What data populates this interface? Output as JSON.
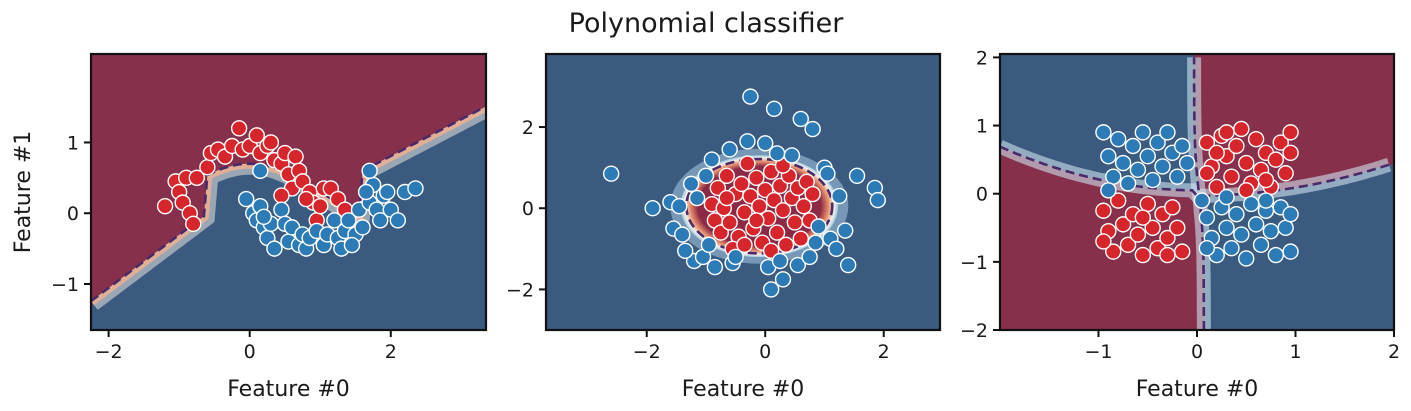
{
  "colors": {
    "class0_region": "#3a5a7f",
    "class1_region": "#86304b",
    "class0_point": "#2c7bb6",
    "class1_point": "#d7262b",
    "boundary": "#4a2a6a"
  },
  "chart_data": [
    {
      "type": "scatter",
      "title": "Polynomial classifier",
      "xlabel": "Feature #0",
      "ylabel": "Feature #1",
      "xlim": [
        -2.25,
        3.35
      ],
      "ylim": [
        -1.65,
        2.25
      ],
      "xticks": [
        -2,
        0,
        2
      ],
      "yticks": [
        -1,
        0,
        1
      ],
      "region_above_boundary": "class1",
      "series": [
        {
          "class": "class1",
          "points": [
            [
              -1.2,
              0.1
            ],
            [
              -1.05,
              0.45
            ],
            [
              -1.0,
              0.3
            ],
            [
              -0.9,
              0.5
            ],
            [
              -0.95,
              0.15
            ],
            [
              -0.85,
              0.0
            ],
            [
              -0.8,
              -0.15
            ],
            [
              -0.75,
              0.5
            ],
            [
              -0.6,
              0.65
            ],
            [
              -0.55,
              0.85
            ],
            [
              -0.45,
              0.9
            ],
            [
              -0.35,
              0.8
            ],
            [
              -0.25,
              0.95
            ],
            [
              -0.15,
              1.2
            ],
            [
              -0.1,
              0.9
            ],
            [
              0.0,
              0.95
            ],
            [
              0.1,
              1.1
            ],
            [
              0.15,
              0.85
            ],
            [
              0.25,
              0.95
            ],
            [
              0.3,
              1.0
            ],
            [
              0.35,
              0.75
            ],
            [
              0.45,
              0.7
            ],
            [
              0.5,
              0.85
            ],
            [
              0.55,
              0.55
            ],
            [
              0.6,
              0.35
            ],
            [
              0.65,
              0.8
            ],
            [
              0.7,
              0.6
            ],
            [
              0.75,
              0.45
            ],
            [
              0.85,
              0.3
            ],
            [
              0.9,
              0.15
            ],
            [
              0.95,
              -0.1
            ],
            [
              1.0,
              0.1
            ],
            [
              1.05,
              0.35
            ],
            [
              1.15,
              0.35
            ],
            [
              1.25,
              0.2
            ],
            [
              1.35,
              0.05
            ],
            [
              0.8,
              0.2
            ],
            [
              0.45,
              0.25
            ]
          ]
        },
        {
          "class": "class0",
          "points": [
            [
              0.15,
              0.6
            ],
            [
              -0.05,
              0.2
            ],
            [
              0.05,
              0.0
            ],
            [
              0.1,
              -0.1
            ],
            [
              0.15,
              0.1
            ],
            [
              0.2,
              -0.2
            ],
            [
              0.25,
              -0.35
            ],
            [
              0.3,
              -0.15
            ],
            [
              0.35,
              -0.5
            ],
            [
              0.2,
              -0.05
            ],
            [
              0.45,
              0.05
            ],
            [
              0.5,
              -0.15
            ],
            [
              0.55,
              -0.4
            ],
            [
              0.6,
              -0.2
            ],
            [
              0.7,
              -0.45
            ],
            [
              0.75,
              -0.3
            ],
            [
              0.8,
              -0.5
            ],
            [
              0.85,
              -0.35
            ],
            [
              0.95,
              -0.25
            ],
            [
              1.05,
              -0.45
            ],
            [
              1.1,
              -0.3
            ],
            [
              1.2,
              -0.1
            ],
            [
              1.25,
              -0.35
            ],
            [
              1.3,
              -0.5
            ],
            [
              1.35,
              -0.25
            ],
            [
              1.4,
              -0.1
            ],
            [
              1.5,
              -0.3
            ],
            [
              1.55,
              0.05
            ],
            [
              1.6,
              -0.2
            ],
            [
              1.7,
              0.15
            ],
            [
              1.75,
              0.4
            ],
            [
              1.8,
              0.05
            ],
            [
              1.85,
              -0.1
            ],
            [
              1.9,
              0.25
            ],
            [
              1.95,
              0.3
            ],
            [
              2.0,
              0.05
            ],
            [
              2.1,
              -0.1
            ],
            [
              2.2,
              0.3
            ],
            [
              2.35,
              0.35
            ],
            [
              1.7,
              0.6
            ],
            [
              1.65,
              0.3
            ],
            [
              1.45,
              -0.45
            ]
          ]
        }
      ]
    },
    {
      "type": "scatter",
      "xlabel": "Feature #0",
      "xlim": [
        -3.7,
        2.95
      ],
      "ylim": [
        -3.0,
        3.8
      ],
      "xticks": [
        -2,
        0,
        2
      ],
      "yticks": [
        -2,
        0,
        2
      ],
      "region_inside_boundary": "class1",
      "series": [
        {
          "class": "class1",
          "points": [
            [
              -0.9,
              0.1
            ],
            [
              -0.85,
              -0.3
            ],
            [
              -0.8,
              0.5
            ],
            [
              -0.75,
              -0.6
            ],
            [
              -0.7,
              0.0
            ],
            [
              -0.65,
              0.8
            ],
            [
              -0.6,
              -0.35
            ],
            [
              -0.5,
              0.35
            ],
            [
              -0.45,
              -0.7
            ],
            [
              -0.4,
              0.6
            ],
            [
              -0.35,
              -0.1
            ],
            [
              -0.3,
              1.1
            ],
            [
              -0.25,
              0.3
            ],
            [
              -0.2,
              -0.5
            ],
            [
              -0.15,
              0.75
            ],
            [
              -0.1,
              0.05
            ],
            [
              -0.05,
              -0.85
            ],
            [
              0.0,
              0.45
            ],
            [
              0.05,
              -0.25
            ],
            [
              0.1,
              0.9
            ],
            [
              0.15,
              0.2
            ],
            [
              0.2,
              -0.6
            ],
            [
              0.25,
              0.55
            ],
            [
              0.3,
              -0.05
            ],
            [
              0.35,
              -0.9
            ],
            [
              0.4,
              0.8
            ],
            [
              0.45,
              0.25
            ],
            [
              0.5,
              -0.35
            ],
            [
              0.55,
              0.5
            ],
            [
              0.6,
              -0.75
            ],
            [
              0.65,
              0.05
            ],
            [
              0.7,
              0.65
            ],
            [
              0.75,
              -0.3
            ],
            [
              0.8,
              0.35
            ],
            [
              -0.55,
              -1.0
            ],
            [
              -0.35,
              -0.9
            ],
            [
              0.1,
              -1.05
            ],
            [
              -0.15,
              -0.3
            ],
            [
              0.3,
              1.05
            ],
            [
              -0.65,
              0.25
            ]
          ]
        },
        {
          "class": "class0",
          "points": [
            [
              -2.6,
              0.85
            ],
            [
              -1.9,
              0.0
            ],
            [
              -1.6,
              0.15
            ],
            [
              -1.55,
              -0.5
            ],
            [
              -1.45,
              0.05
            ],
            [
              -1.4,
              -0.65
            ],
            [
              -1.25,
              0.6
            ],
            [
              -1.2,
              -1.3
            ],
            [
              -1.15,
              0.25
            ],
            [
              -1.05,
              -1.2
            ],
            [
              -1.0,
              0.8
            ],
            [
              -0.95,
              -0.9
            ],
            [
              -0.9,
              1.2
            ],
            [
              -0.85,
              -1.45
            ],
            [
              -0.6,
              1.45
            ],
            [
              -0.55,
              -1.35
            ],
            [
              -0.3,
              1.65
            ],
            [
              -0.25,
              2.75
            ],
            [
              0.0,
              1.6
            ],
            [
              0.05,
              -1.45
            ],
            [
              0.1,
              -2.0
            ],
            [
              0.15,
              2.45
            ],
            [
              0.2,
              1.35
            ],
            [
              0.25,
              -1.3
            ],
            [
              0.3,
              -1.75
            ],
            [
              0.45,
              1.3
            ],
            [
              0.55,
              -1.4
            ],
            [
              0.6,
              2.2
            ],
            [
              0.75,
              -1.2
            ],
            [
              0.8,
              1.95
            ],
            [
              0.85,
              -0.85
            ],
            [
              0.9,
              -0.45
            ],
            [
              1.0,
              1.0
            ],
            [
              1.05,
              0.85
            ],
            [
              1.1,
              -0.75
            ],
            [
              1.2,
              -1.0
            ],
            [
              1.25,
              0.3
            ],
            [
              1.35,
              -0.55
            ],
            [
              1.4,
              -1.4
            ],
            [
              1.55,
              0.8
            ],
            [
              1.85,
              0.5
            ],
            [
              1.9,
              0.2
            ],
            [
              -1.35,
              -1.05
            ],
            [
              -0.5,
              -1.2
            ]
          ]
        }
      ]
    },
    {
      "type": "scatter",
      "xlabel": "Feature #0",
      "xlim": [
        -2.0,
        2.0
      ],
      "ylim": [
        -2.0,
        2.05
      ],
      "xticks": [
        -1,
        0,
        1,
        2
      ],
      "yticks": [
        -2,
        -1,
        0,
        1,
        2
      ],
      "region_same_sign": "class1",
      "series": [
        {
          "class": "class1",
          "points": [
            [
              0.1,
              0.75
            ],
            [
              0.15,
              0.4
            ],
            [
              0.2,
              0.1
            ],
            [
              0.25,
              0.85
            ],
            [
              0.3,
              0.55
            ],
            [
              0.35,
              0.25
            ],
            [
              0.4,
              0.7
            ],
            [
              0.45,
              0.95
            ],
            [
              0.5,
              0.45
            ],
            [
              0.55,
              0.15
            ],
            [
              0.6,
              0.8
            ],
            [
              0.65,
              0.35
            ],
            [
              0.7,
              0.6
            ],
            [
              0.75,
              0.1
            ],
            [
              0.8,
              0.5
            ],
            [
              0.85,
              0.75
            ],
            [
              0.9,
              0.3
            ],
            [
              0.95,
              0.9
            ],
            [
              0.95,
              0.6
            ],
            [
              0.2,
              0.6
            ],
            [
              0.5,
              0.05
            ],
            [
              0.7,
              0.2
            ],
            [
              0.3,
              0.9
            ],
            [
              0.1,
              0.3
            ],
            [
              -0.95,
              -0.25
            ],
            [
              -0.9,
              -0.55
            ],
            [
              -0.85,
              -0.85
            ],
            [
              -0.8,
              -0.1
            ],
            [
              -0.75,
              -0.45
            ],
            [
              -0.7,
              -0.75
            ],
            [
              -0.65,
              -0.3
            ],
            [
              -0.6,
              -0.6
            ],
            [
              -0.55,
              -0.9
            ],
            [
              -0.5,
              -0.15
            ],
            [
              -0.45,
              -0.5
            ],
            [
              -0.4,
              -0.8
            ],
            [
              -0.35,
              -0.3
            ],
            [
              -0.3,
              -0.65
            ],
            [
              -0.25,
              -0.2
            ],
            [
              -0.2,
              -0.5
            ],
            [
              -0.15,
              -0.85
            ],
            [
              -0.95,
              -0.7
            ],
            [
              -0.55,
              -0.35
            ],
            [
              -0.3,
              -0.9
            ]
          ]
        },
        {
          "class": "class0",
          "points": [
            [
              -0.95,
              0.9
            ],
            [
              -0.9,
              0.55
            ],
            [
              -0.85,
              0.25
            ],
            [
              -0.8,
              0.8
            ],
            [
              -0.75,
              0.45
            ],
            [
              -0.7,
              0.15
            ],
            [
              -0.65,
              0.7
            ],
            [
              -0.6,
              0.35
            ],
            [
              -0.55,
              0.9
            ],
            [
              -0.5,
              0.55
            ],
            [
              -0.45,
              0.2
            ],
            [
              -0.4,
              0.75
            ],
            [
              -0.35,
              0.4
            ],
            [
              -0.3,
              0.9
            ],
            [
              -0.25,
              0.6
            ],
            [
              -0.2,
              0.25
            ],
            [
              -0.15,
              0.7
            ],
            [
              -0.1,
              0.45
            ],
            [
              -0.9,
              0.05
            ],
            [
              0.05,
              -0.1
            ],
            [
              0.1,
              -0.35
            ],
            [
              0.15,
              -0.65
            ],
            [
              0.2,
              -0.9
            ],
            [
              0.25,
              -0.2
            ],
            [
              0.3,
              -0.5
            ],
            [
              0.35,
              -0.8
            ],
            [
              0.4,
              -0.3
            ],
            [
              0.45,
              -0.6
            ],
            [
              0.5,
              -0.95
            ],
            [
              0.55,
              -0.15
            ],
            [
              0.6,
              -0.45
            ],
            [
              0.65,
              -0.75
            ],
            [
              0.7,
              -0.25
            ],
            [
              0.75,
              -0.55
            ],
            [
              0.8,
              -0.9
            ],
            [
              0.85,
              -0.2
            ],
            [
              0.9,
              -0.5
            ],
            [
              0.95,
              -0.85
            ],
            [
              0.95,
              -0.3
            ],
            [
              0.7,
              -0.1
            ],
            [
              0.3,
              -0.05
            ],
            [
              0.1,
              -0.8
            ]
          ]
        }
      ]
    }
  ]
}
